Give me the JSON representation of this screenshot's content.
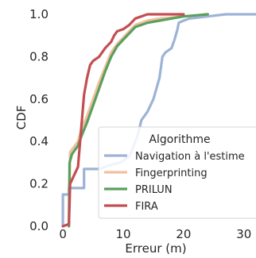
{
  "chart_data": {
    "type": "line",
    "xlabel": "Erreur (m)",
    "ylabel": "CDF",
    "xlim": [
      -1.2,
      32
    ],
    "ylim": [
      0,
      1.03
    ],
    "xticks": [
      0,
      10,
      20,
      30
    ],
    "yticks": [
      0.0,
      0.2,
      0.4,
      0.6,
      0.8,
      1.0
    ],
    "xtick_labels": [
      "0",
      "10",
      "20",
      "30"
    ],
    "ytick_labels": [
      "0.0",
      "0.2",
      "0.4",
      "0.6",
      "0.8",
      "1.0"
    ],
    "grid": false,
    "legend": {
      "title": "Algorithme",
      "placement": "lower-right"
    },
    "series": [
      {
        "name": "Navigation à l'estime",
        "color": "#9db3d6",
        "points": [
          [
            0,
            0
          ],
          [
            0,
            0.15
          ],
          [
            1,
            0.15
          ],
          [
            1,
            0.18
          ],
          [
            3.5,
            0.18
          ],
          [
            3.5,
            0.27
          ],
          [
            6,
            0.27
          ],
          [
            8,
            0.29
          ],
          [
            9.5,
            0.3
          ],
          [
            11,
            0.33
          ],
          [
            11.5,
            0.36
          ],
          [
            12,
            0.4
          ],
          [
            12.5,
            0.44
          ],
          [
            13,
            0.5
          ],
          [
            14,
            0.54
          ],
          [
            15,
            0.6
          ],
          [
            16,
            0.7
          ],
          [
            16.5,
            0.8
          ],
          [
            17,
            0.82
          ],
          [
            18,
            0.84
          ],
          [
            18.5,
            0.88
          ],
          [
            19,
            0.93
          ],
          [
            19.2,
            0.96
          ],
          [
            20,
            0.97
          ],
          [
            21,
            0.98
          ],
          [
            24,
            0.99
          ],
          [
            27,
            1.0
          ],
          [
            32,
            1.0
          ]
        ]
      },
      {
        "name": "Fingerprinting",
        "color": "#f2c0a1",
        "points": [
          [
            1,
            0
          ],
          [
            1.2,
            0.35
          ],
          [
            2.5,
            0.4
          ],
          [
            3,
            0.45
          ],
          [
            4,
            0.52
          ],
          [
            5,
            0.6
          ],
          [
            6,
            0.68
          ],
          [
            7,
            0.75
          ],
          [
            8,
            0.82
          ],
          [
            9,
            0.86
          ],
          [
            10,
            0.89
          ],
          [
            11,
            0.92
          ],
          [
            12,
            0.95
          ],
          [
            14,
            0.97
          ],
          [
            16,
            0.98
          ],
          [
            20,
            0.99
          ],
          [
            24,
            1.0
          ]
        ]
      },
      {
        "name": "PRILUN",
        "color": "#59a05d",
        "points": [
          [
            1,
            0
          ],
          [
            1.1,
            0.3
          ],
          [
            1.5,
            0.34
          ],
          [
            2.5,
            0.38
          ],
          [
            3,
            0.42
          ],
          [
            4,
            0.49
          ],
          [
            5,
            0.57
          ],
          [
            6,
            0.65
          ],
          [
            7,
            0.73
          ],
          [
            8,
            0.8
          ],
          [
            9,
            0.85
          ],
          [
            10,
            0.88
          ],
          [
            11,
            0.91
          ],
          [
            12,
            0.94
          ],
          [
            14,
            0.96
          ],
          [
            16,
            0.97
          ],
          [
            18,
            0.98
          ],
          [
            20,
            0.99
          ],
          [
            24,
            1.0
          ]
        ]
      },
      {
        "name": "FIRA",
        "color": "#c44e52",
        "points": [
          [
            0,
            0
          ],
          [
            1,
            0.01
          ],
          [
            1.2,
            0.2
          ],
          [
            2.5,
            0.28
          ],
          [
            3,
            0.45
          ],
          [
            3.5,
            0.62
          ],
          [
            4,
            0.7
          ],
          [
            4.5,
            0.76
          ],
          [
            5,
            0.78
          ],
          [
            6,
            0.8
          ],
          [
            7,
            0.84
          ],
          [
            8,
            0.87
          ],
          [
            8.5,
            0.9
          ],
          [
            9,
            0.92
          ],
          [
            10,
            0.93
          ],
          [
            11,
            0.95
          ],
          [
            12,
            0.98
          ],
          [
            13,
            0.99
          ],
          [
            14,
            1.0
          ],
          [
            20,
            1.0
          ]
        ]
      }
    ]
  }
}
